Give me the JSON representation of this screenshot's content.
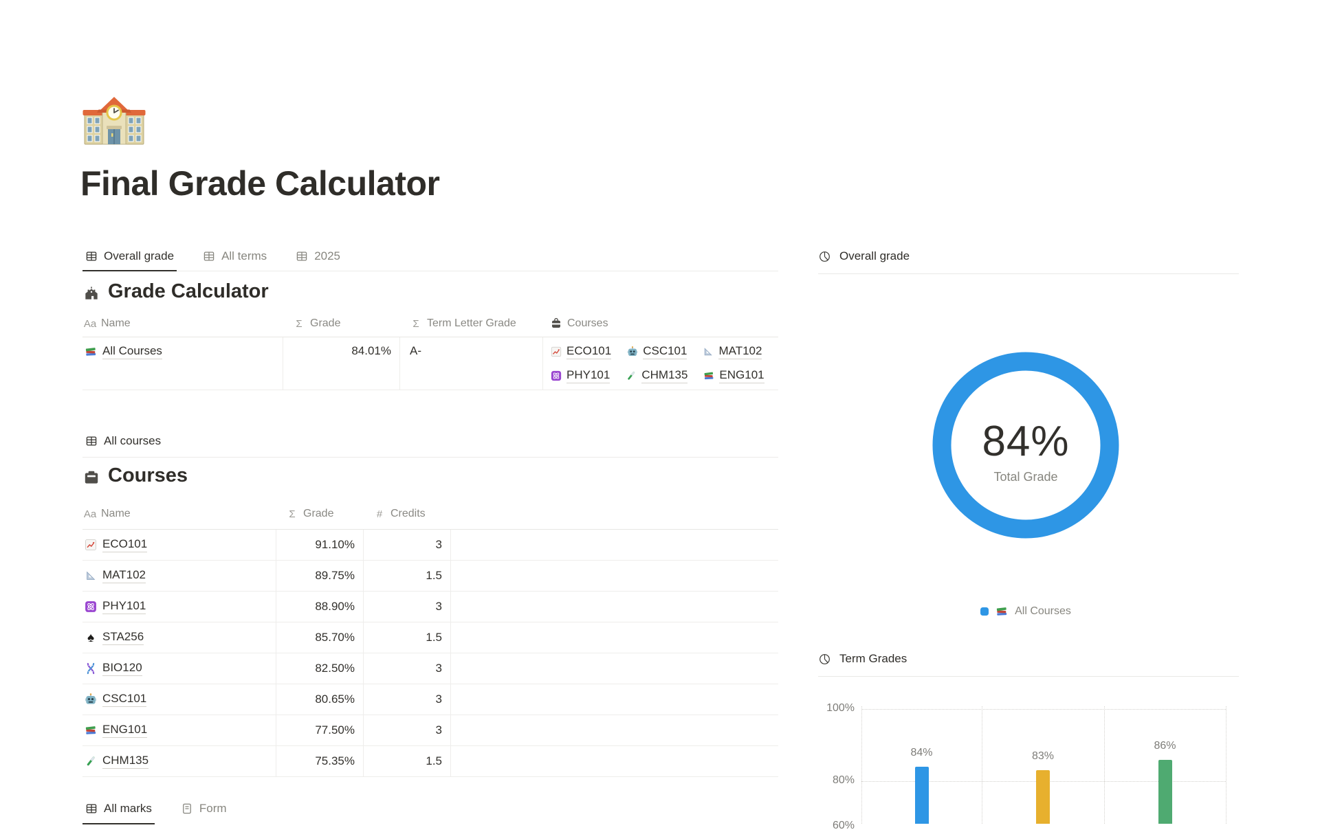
{
  "page": {
    "emoji": "school-emoji-icon",
    "title": "Final Grade Calculator"
  },
  "top_tabs": [
    {
      "label": "Overall grade",
      "icon": "table-icon",
      "active": true
    },
    {
      "label": "All terms",
      "icon": "table-icon",
      "active": false
    },
    {
      "label": "2025",
      "icon": "table-icon",
      "active": false
    }
  ],
  "grade_calculator": {
    "icon": "school-building-icon",
    "title": "Grade Calculator",
    "columns": [
      {
        "icon": "text-icon",
        "label": "Name"
      },
      {
        "icon": "sum-icon",
        "label": "Grade"
      },
      {
        "icon": "sum-icon",
        "label": "Term Letter Grade"
      },
      {
        "icon": "relation-icon",
        "label": "Courses"
      }
    ],
    "row": {
      "icon": "books-icon",
      "name": "All Courses",
      "grade": "84.01%",
      "term_letter_grade": "A-",
      "courses": [
        {
          "icon": "chart-increasing-icon",
          "label": "ECO101"
        },
        {
          "icon": "robot-icon",
          "label": "CSC101"
        },
        {
          "icon": "triangle-ruler-icon",
          "label": "MAT102"
        },
        {
          "icon": "atom-icon",
          "label": "PHY101"
        },
        {
          "icon": "test-tube-icon",
          "label": "CHM135"
        },
        {
          "icon": "books-icon",
          "label": "ENG101"
        }
      ]
    }
  },
  "all_courses_view": {
    "icon": "table-icon",
    "label": "All courses"
  },
  "courses": {
    "icon": "card-file-icon",
    "title": "Courses",
    "columns": [
      {
        "icon": "text-icon",
        "label": "Name"
      },
      {
        "icon": "sum-icon",
        "label": "Grade"
      },
      {
        "icon": "hash-icon",
        "label": "Credits"
      }
    ],
    "rows": [
      {
        "icon": "chart-increasing-icon",
        "name": "ECO101",
        "grade": "91.10%",
        "credits": "3"
      },
      {
        "icon": "triangle-ruler-icon",
        "name": "MAT102",
        "grade": "89.75%",
        "credits": "1.5"
      },
      {
        "icon": "atom-icon",
        "name": "PHY101",
        "grade": "88.90%",
        "credits": "3"
      },
      {
        "icon": "spade-icon",
        "name": "STA256",
        "grade": "85.70%",
        "credits": "1.5"
      },
      {
        "icon": "dna-icon",
        "name": "BIO120",
        "grade": "82.50%",
        "credits": "3"
      },
      {
        "icon": "robot-icon",
        "name": "CSC101",
        "grade": "80.65%",
        "credits": "3"
      },
      {
        "icon": "books-icon",
        "name": "ENG101",
        "grade": "77.50%",
        "credits": "3"
      },
      {
        "icon": "test-tube-icon",
        "name": "CHM135",
        "grade": "75.35%",
        "credits": "1.5"
      }
    ]
  },
  "bottom_tabs": [
    {
      "label": "All marks",
      "icon": "table-icon",
      "active": true
    },
    {
      "label": "Form",
      "icon": "form-icon",
      "active": false
    }
  ],
  "right_panel": {
    "overall_grade": {
      "icon": "pie-chart-icon",
      "label": "Overall grade"
    },
    "donut": {
      "value_label": "84%",
      "caption": "Total Grade",
      "color": "#2E96E5",
      "legend": {
        "bullet_color": "#2E96E5",
        "icon": "books-icon",
        "label": "All Courses"
      }
    },
    "term_grades": {
      "icon": "pie-chart-icon",
      "label": "Term Grades"
    }
  },
  "chart_data": [
    {
      "type": "pie",
      "donut": true,
      "title": "Overall grade",
      "labels": [
        "All Courses"
      ],
      "values": [
        84
      ],
      "colors": [
        "#2E96E5"
      ],
      "center_label": "84%",
      "center_caption": "Total Grade",
      "legend_position": "bottom"
    },
    {
      "type": "bar",
      "title": "Term Grades",
      "categories": [
        "",
        "",
        ""
      ],
      "values": [
        84,
        83,
        86
      ],
      "bar_labels": [
        "84%",
        "83%",
        "86%"
      ],
      "colors": [
        "#2E96E5",
        "#E7B02E",
        "#4FAA71"
      ],
      "ytick_labels": [
        "100%",
        "80%",
        "60%"
      ],
      "ylim_visible": [
        60,
        100
      ],
      "grid": "dotted"
    }
  ]
}
